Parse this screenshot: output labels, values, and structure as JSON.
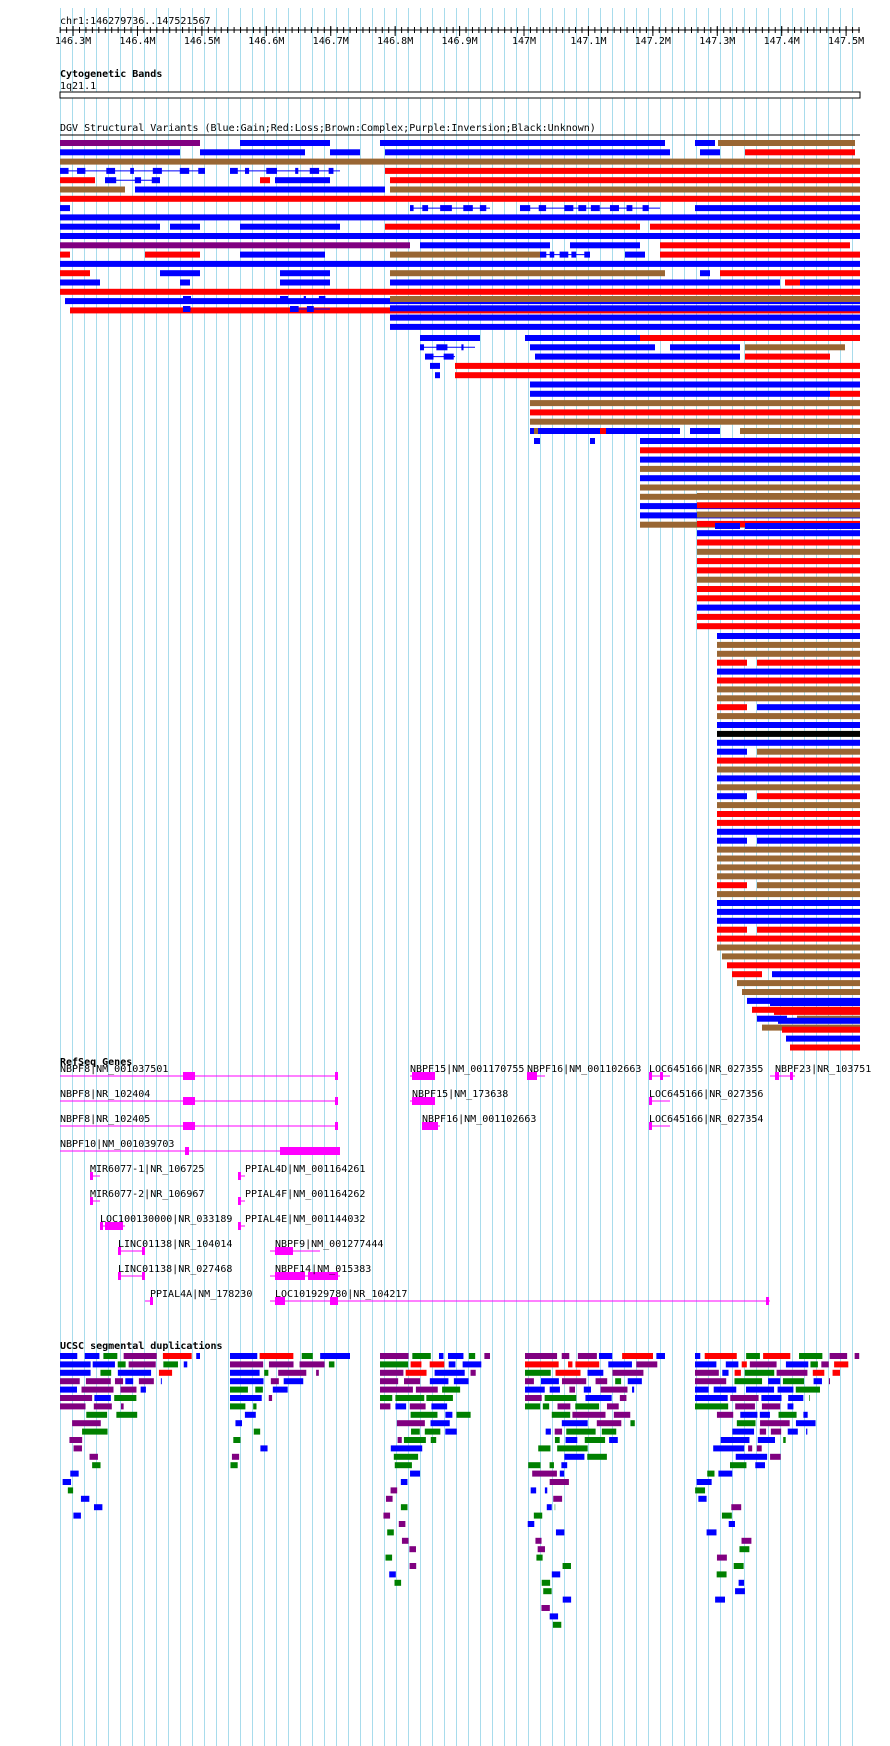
{
  "ruler": {
    "position": "chr1:146279736..147521567",
    "ticks": [
      "146.3M",
      "146.4M",
      "146.5M",
      "146.6M",
      "146.7M",
      "146.8M",
      "146.9M",
      "147M",
      "147.1M",
      "147.2M",
      "147.3M",
      "147.4M",
      "147.5M"
    ]
  },
  "tracks": {
    "cytobands": {
      "title": "Cytogenetic Bands",
      "band": "1q21.1"
    },
    "dgv": {
      "title": "DGV Structural Variants (Blue:Gain;Red:Loss;Brown:Complex;Purple:Inversion;Black:Unknown)"
    },
    "refseq": {
      "title": "RefSeq Genes",
      "genes": [
        "NBPF8|NM_001037501",
        "NBPF8|NR_102404",
        "NBPF8|NR_102405",
        "NBPF10|NM_001039703",
        "MIR6077-1|NR_106725",
        "MIR6077-2|NR_106967",
        "LOC100130000|NR_033189",
        "LINC01138|NR_104014",
        "LINC01138|NR_027468",
        "PPIAL4A|NM_178230",
        "PPIAL4D|NM_001164261",
        "PPIAL4F|NM_001164262",
        "PPIAL4E|NM_001144032",
        "NBPF9|NM_001277444",
        "NBPF14|NM_015383",
        "LOC101929780|NR_104217",
        "NBPF15|NM_001170755",
        "NBPF15|NM_173638",
        "NBPF16|NM_001102663",
        "NBPF16|NM_001102663",
        "LOC645166|NR_027355",
        "LOC645166|NR_027356",
        "LOC645166|NR_027354",
        "NBPF23|NR_103751"
      ]
    },
    "segdups": {
      "title": "UCSC segmental duplications"
    }
  },
  "colors": {
    "gain": "#0000ff",
    "loss": "#ff0000",
    "complex": "#996633",
    "inversion": "#800080",
    "unknown": "#000000",
    "gene": "#ff00ff",
    "segdup_green": "#008000",
    "grid": "#a8dcec"
  }
}
